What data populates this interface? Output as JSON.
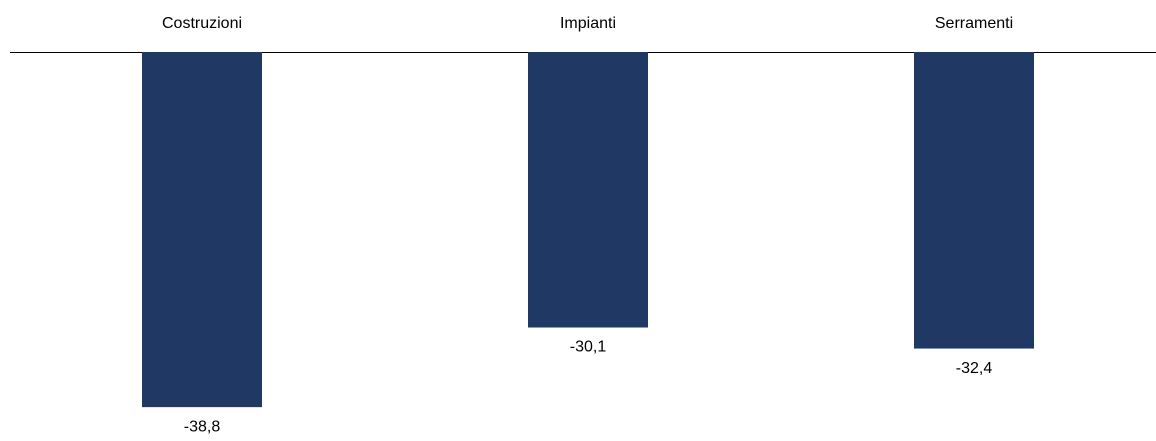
{
  "chart_data": {
    "type": "bar",
    "categories": [
      "Costruzioni",
      "Impianti",
      "Serramenti"
    ],
    "values": [
      -38.8,
      -30.1,
      -32.4
    ],
    "value_labels": [
      "-38,8",
      "-30,1",
      "-32,4"
    ],
    "color": "#203864",
    "ylim": [
      -42.5,
      0
    ]
  }
}
